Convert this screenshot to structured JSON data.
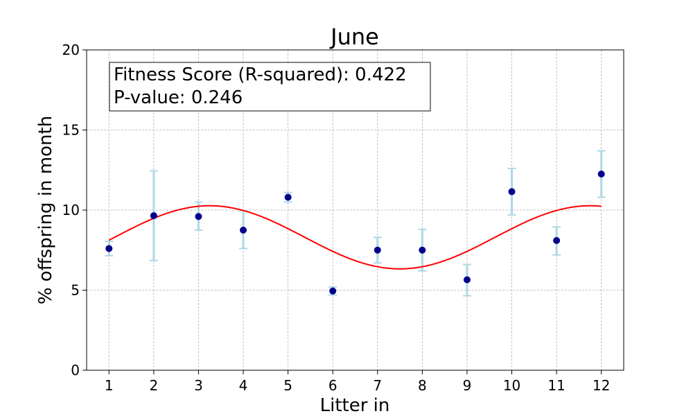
{
  "chart_data": {
    "type": "scatter",
    "title": "June",
    "xlabel": "Litter in",
    "ylabel": "% offspring in month",
    "xlim": [
      0.5,
      12.5
    ],
    "ylim": [
      0,
      20
    ],
    "xticks": [
      1,
      2,
      3,
      4,
      5,
      6,
      7,
      8,
      9,
      10,
      11,
      12
    ],
    "yticks": [
      0,
      5,
      10,
      15,
      20
    ],
    "grid": true,
    "points": {
      "x": [
        1,
        2,
        3,
        4,
        5,
        6,
        7,
        8,
        9,
        10,
        11,
        12
      ],
      "y": [
        7.6,
        9.65,
        9.6,
        8.75,
        10.8,
        4.95,
        7.5,
        7.5,
        5.65,
        11.15,
        8.1,
        12.25
      ],
      "err_low": [
        7.15,
        6.85,
        8.75,
        7.6,
        10.5,
        4.7,
        6.7,
        6.2,
        4.65,
        9.7,
        7.2,
        10.8
      ],
      "err_high": [
        8.05,
        12.45,
        10.5,
        9.95,
        11.1,
        5.2,
        8.3,
        8.8,
        6.6,
        12.6,
        8.95,
        13.7
      ],
      "color": "#00008b",
      "errorbar_color": "#add8e6"
    },
    "fit_curve": {
      "type": "sine",
      "mean": 8.3,
      "amplitude": 1.97,
      "period": 8.5,
      "peak_x": 3.25,
      "x_range": [
        1,
        12
      ],
      "color": "#ff0000"
    },
    "annotation": {
      "line1": "Fitness Score (R-squared): 0.422",
      "line2": "P-value: 0.246"
    }
  }
}
